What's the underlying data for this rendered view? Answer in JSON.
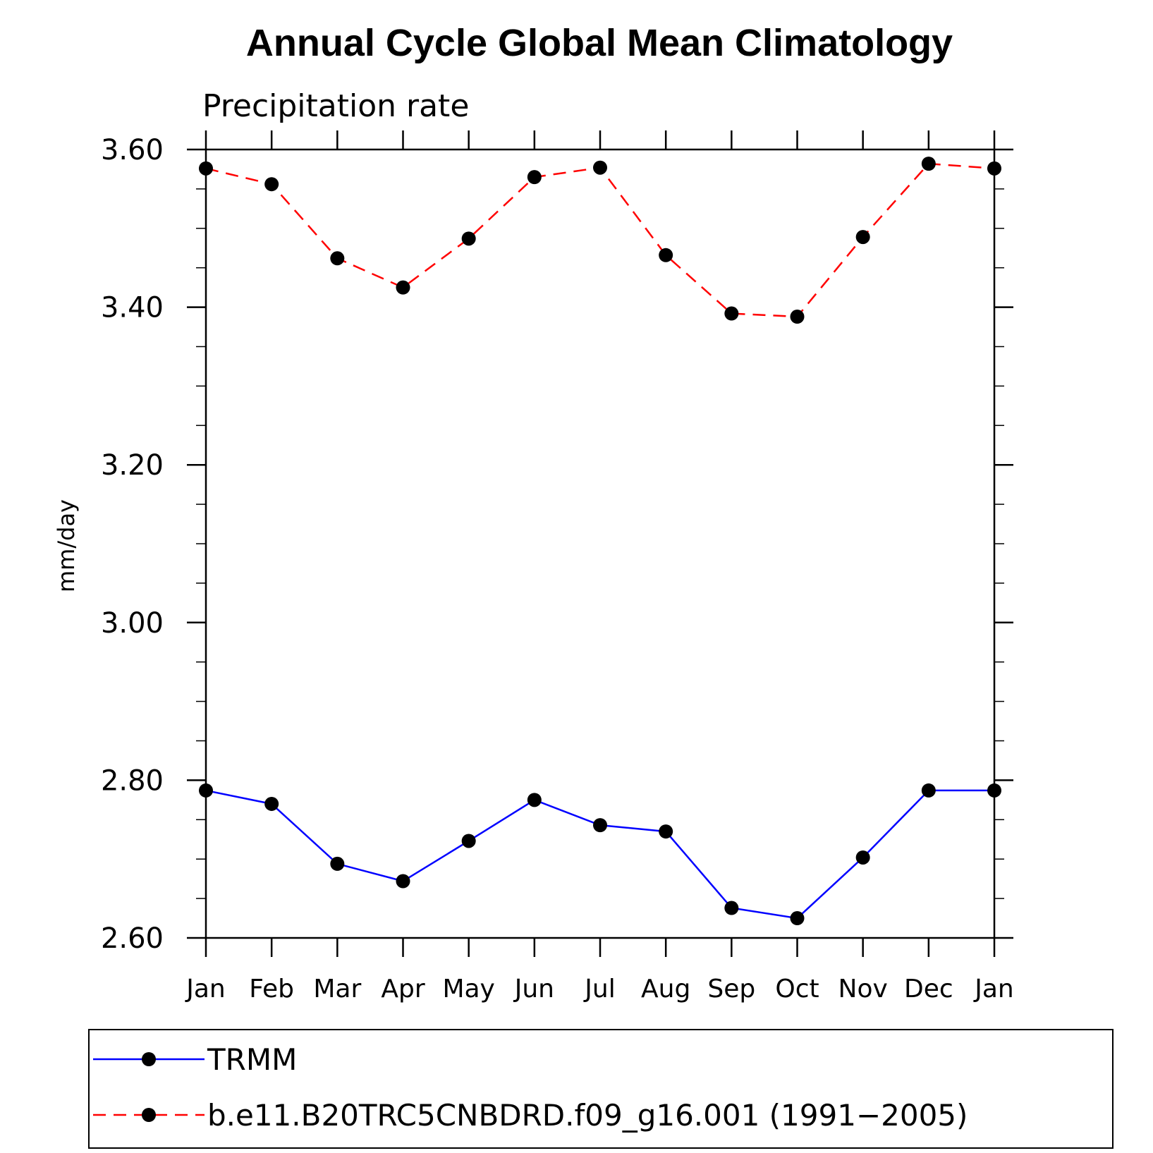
{
  "chart_data": {
    "type": "line",
    "title": "Annual Cycle Global Mean Climatology",
    "subtitle": "Precipitation rate",
    "ylabel": "mm/day",
    "xlabel": "",
    "categories": [
      "Jan",
      "Feb",
      "Mar",
      "Apr",
      "May",
      "Jun",
      "Jul",
      "Aug",
      "Sep",
      "Oct",
      "Nov",
      "Dec",
      "Jan"
    ],
    "ylim": [
      2.6,
      3.6
    ],
    "yticks": [
      "2.60",
      "2.80",
      "3.00",
      "3.20",
      "3.40",
      "3.60"
    ],
    "ytick_values": [
      2.6,
      2.8,
      3.0,
      3.2,
      3.4,
      3.6
    ],
    "y_minor_step": 0.05,
    "grid": false,
    "legend_position": "bottom",
    "series": [
      {
        "name": "TRMM",
        "color": "#0000ff",
        "dash": "solid",
        "marker": "filled-circle",
        "values": [
          2.787,
          2.77,
          2.694,
          2.672,
          2.723,
          2.775,
          2.743,
          2.735,
          2.638,
          2.625,
          2.702,
          2.787,
          2.787
        ]
      },
      {
        "name": "b.e11.B20TRC5CNBDRD.f09_g16.001 (1991−2005)",
        "color": "#ff0000",
        "dash": "dashed",
        "marker": "filled-circle",
        "values": [
          3.576,
          3.556,
          3.462,
          3.425,
          3.487,
          3.565,
          3.577,
          3.466,
          3.392,
          3.388,
          3.489,
          3.582,
          3.576
        ]
      }
    ]
  }
}
